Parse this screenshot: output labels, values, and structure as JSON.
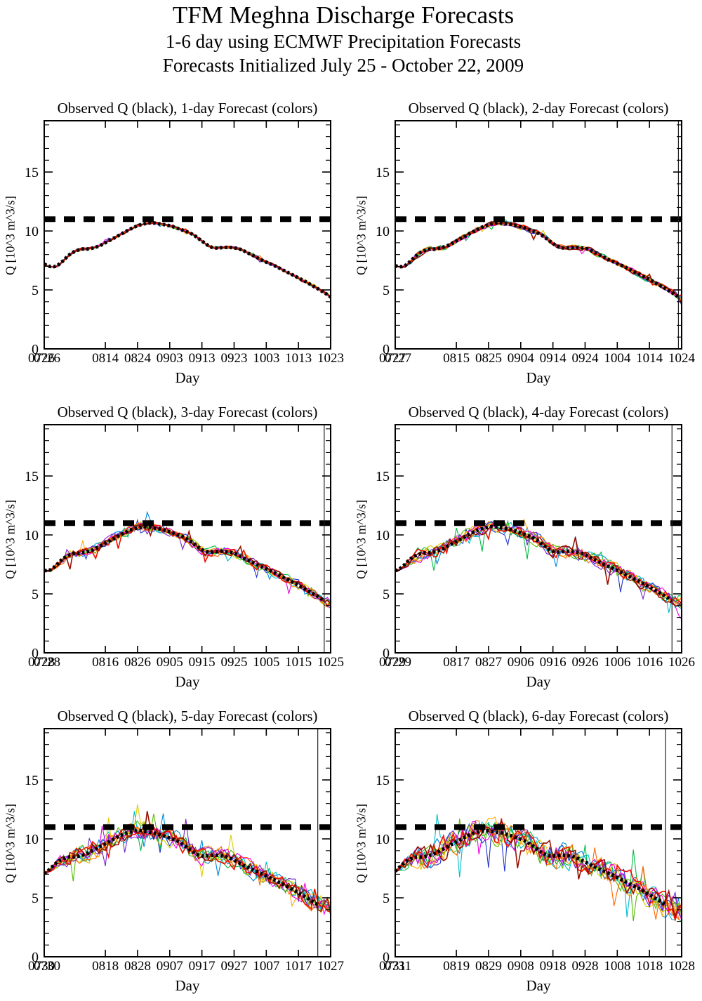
{
  "header": {
    "title": "TFM Meghna Discharge Forecasts",
    "subtitle1": "1-6 day using ECMWF Precipitation Forecasts",
    "subtitle2": "Forecasts Initialized July 25 - October 22, 2009"
  },
  "chart_data": {
    "type": "line",
    "xlabel": "Day",
    "ylabel": "Q [10^3 m^3/s]",
    "ylim": [
      0,
      19.35
    ],
    "y_major_ticks": [
      0,
      5,
      10,
      15
    ],
    "y_minor_step": 1,
    "x_major_day_indices": [
      0,
      19,
      29,
      39,
      49,
      59,
      69,
      79,
      89
    ],
    "x_span_days": 89,
    "danger_level": 11.0,
    "last_observation_master_index": 89,
    "grid": "off",
    "legend": "none",
    "observed_series": {
      "name": "Observed Q",
      "color": "#000000",
      "style": "thick-dotted",
      "start_date": "0726",
      "daily_values": [
        7.2,
        7.05,
        6.98,
        6.97,
        7.05,
        7.25,
        7.5,
        7.78,
        8.02,
        8.2,
        8.33,
        8.42,
        8.48,
        8.45,
        8.5,
        8.55,
        8.62,
        8.72,
        8.85,
        9.0,
        9.15,
        9.3,
        9.45,
        9.6,
        9.75,
        9.9,
        10.05,
        10.2,
        10.33,
        10.44,
        10.53,
        10.6,
        10.66,
        10.7,
        10.68,
        10.64,
        10.6,
        10.55,
        10.5,
        10.44,
        10.36,
        10.27,
        10.17,
        10.07,
        9.97,
        9.86,
        9.72,
        9.55,
        9.35,
        9.15,
        8.95,
        8.75,
        8.62,
        8.56,
        8.55,
        8.58,
        8.6,
        8.62,
        8.6,
        8.57,
        8.52,
        8.44,
        8.32,
        8.18,
        8.04,
        7.9,
        7.76,
        7.62,
        7.48,
        7.36,
        7.24,
        7.12,
        7.0,
        6.86,
        6.72,
        6.58,
        6.44,
        6.3,
        6.16,
        6.02,
        5.88,
        5.74,
        5.58,
        5.42,
        5.26,
        5.1,
        4.94,
        4.78,
        4.6,
        4.4,
        4.32,
        4.26,
        4.22,
        4.18,
        4.16,
        4.14
      ]
    },
    "ensemble": {
      "n_members": 12,
      "member_colors": [
        "#2233cc",
        "#0088dd",
        "#00bbcc",
        "#00bb44",
        "#55bb00",
        "#ddcc00",
        "#ffaa00",
        "#ff6600",
        "#ee00dd",
        "#7722cc",
        "#ee1100",
        "#991100"
      ],
      "spread_by_lead": [
        0.07,
        0.16,
        0.28,
        0.42,
        0.58,
        0.78
      ]
    },
    "panels": [
      {
        "lead_days": 1,
        "title": "Observed Q (black), 1-day Forecast (colors)",
        "start_label": "0726",
        "x_tick_labels": [
          "0814",
          "0824",
          "0903",
          "0913",
          "0923",
          "1003",
          "1013",
          "1023"
        ],
        "start_offset": 0
      },
      {
        "lead_days": 2,
        "title": "Observed Q (black), 2-day Forecast (colors)",
        "start_label": "0727",
        "x_tick_labels": [
          "0815",
          "0825",
          "0904",
          "0914",
          "0924",
          "1004",
          "1014",
          "1024"
        ],
        "start_offset": 1
      },
      {
        "lead_days": 3,
        "title": "Observed Q (black), 3-day Forecast (colors)",
        "start_label": "0728",
        "x_tick_labels": [
          "0816",
          "0826",
          "0905",
          "0915",
          "0925",
          "1005",
          "1015",
          "1025"
        ],
        "start_offset": 2
      },
      {
        "lead_days": 4,
        "title": "Observed Q (black), 4-day Forecast (colors)",
        "start_label": "0729",
        "x_tick_labels": [
          "0817",
          "0827",
          "0906",
          "0916",
          "0926",
          "1006",
          "1016",
          "1026"
        ],
        "start_offset": 3
      },
      {
        "lead_days": 5,
        "title": "Observed Q (black), 5-day Forecast (colors)",
        "start_label": "0730",
        "x_tick_labels": [
          "0818",
          "0828",
          "0907",
          "0917",
          "0927",
          "1007",
          "1017",
          "1027"
        ],
        "start_offset": 4
      },
      {
        "lead_days": 6,
        "title": "Observed Q (black), 6-day Forecast (colors)",
        "start_label": "0731",
        "x_tick_labels": [
          "0819",
          "0829",
          "0908",
          "0918",
          "0928",
          "1008",
          "1018",
          "1028"
        ],
        "start_offset": 5
      }
    ]
  }
}
